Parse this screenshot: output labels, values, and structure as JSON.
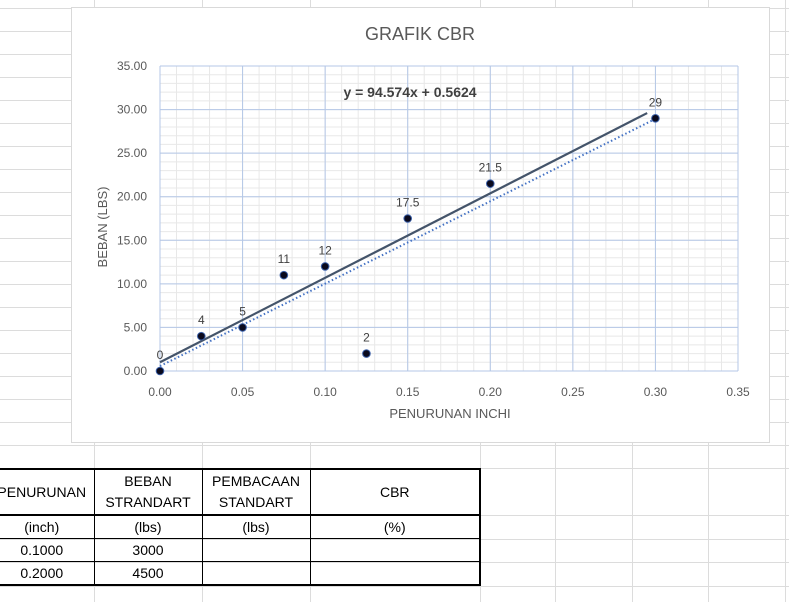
{
  "chart_data": {
    "type": "scatter",
    "title": "GRAFIK CBR",
    "xlabel": "PENURUNAN INCHI",
    "ylabel": "BEBAN (LBS)",
    "xlim": [
      0,
      0.35
    ],
    "ylim": [
      0,
      35
    ],
    "x_ticks": [
      "0.00",
      "0.05",
      "0.10",
      "0.15",
      "0.20",
      "0.25",
      "0.30",
      "0.35"
    ],
    "y_ticks": [
      "0.00",
      "5.00",
      "10.00",
      "15.00",
      "20.00",
      "25.00",
      "30.00",
      "35.00"
    ],
    "grid": true,
    "legend": "none",
    "series": [
      {
        "name": "Beban",
        "x": [
          0,
          0.025,
          0.05,
          0.075,
          0.1,
          0.125,
          0.15,
          0.2,
          0.3
        ],
        "values": [
          0,
          4,
          5,
          11,
          12,
          2,
          17.5,
          21.5,
          29
        ],
        "labels": [
          "0",
          "4",
          "5",
          "11",
          "12",
          "2",
          "17.5",
          "21.5",
          "29"
        ]
      }
    ],
    "trendline": {
      "type": "linear",
      "equation": "y = 94.574x + 0.5624",
      "slope": 94.574,
      "intercept": 0.5624
    },
    "colors": {
      "marker": "#0a0a1e",
      "marker_edge": "#3a5fa8",
      "solid_line": "#44546a",
      "dotted_trend": "#4472c4",
      "major_grid": "#b4c7e7",
      "minor_grid": "#e8e8e8",
      "text": "#595959"
    }
  },
  "table": {
    "headers": [
      {
        "top": "PENURUNAN",
        "bottom": ""
      },
      {
        "top": "BEBAN",
        "bottom": "STRANDART"
      },
      {
        "top": "PEMBACAAN",
        "bottom": "STANDART"
      },
      {
        "top": "CBR",
        "bottom": ""
      }
    ],
    "units": [
      "(inch)",
      "(lbs)",
      "(lbs)",
      "(%)"
    ],
    "rows": [
      [
        "0.1000",
        "3000",
        "",
        ""
      ],
      [
        "0.2000",
        "4500",
        "",
        ""
      ]
    ]
  }
}
